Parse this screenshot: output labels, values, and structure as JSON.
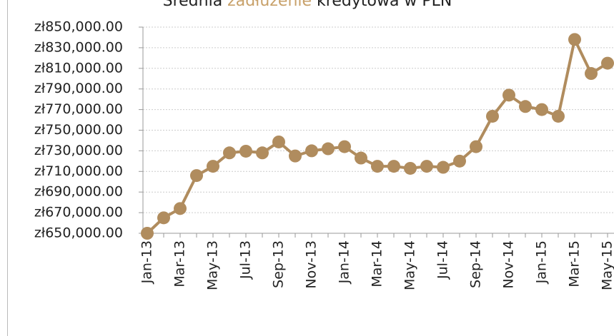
{
  "chart_data": {
    "type": "line",
    "title_parts": [
      "Średnia ",
      "zadłużenie",
      " kredytowa w PLN"
    ],
    "title_colors": [
      "#222222",
      "#c8a16a",
      "#222222"
    ],
    "categories": [
      "Jan-13",
      null,
      "Mar-13",
      null,
      "May-13",
      null,
      "Jul-13",
      null,
      "Sep-13",
      null,
      "Nov-13",
      null,
      "Jan-14",
      null,
      "Mar-14",
      null,
      "May-14",
      null,
      "Jul-14",
      null,
      "Sep-14",
      null,
      "Nov-14",
      null,
      "Jan-15",
      null,
      "Mar-15",
      null,
      "May-15"
    ],
    "values": [
      650000,
      665000,
      674000,
      706000,
      715000,
      728000,
      729600,
      728000,
      738600,
      725000,
      730000,
      732000,
      734000,
      723000,
      715000,
      715000,
      713000,
      715000,
      714000,
      720000,
      734000,
      763500,
      784000,
      773000,
      770000,
      763500,
      838000,
      805000,
      815000
    ],
    "color": "#b08c5e",
    "ylim": [
      650000,
      850000
    ],
    "yticks": [
      {
        "value": 650000,
        "label": "zł650,000.00"
      },
      {
        "value": 670000,
        "label": "zł670,000.00"
      },
      {
        "value": 690000,
        "label": "zł690,000.00"
      },
      {
        "value": 710000,
        "label": "zł710,000.00"
      },
      {
        "value": 730000,
        "label": "zł730,000.00"
      },
      {
        "value": 750000,
        "label": "zł750,000.00"
      },
      {
        "value": 770000,
        "label": "zł770,000.00"
      },
      {
        "value": 790000,
        "label": "zł790,000.00"
      },
      {
        "value": 810000,
        "label": "zł810,000.00"
      },
      {
        "value": 830000,
        "label": "zł830,000.00"
      },
      {
        "value": 850000,
        "label": "zł850,000.00"
      }
    ],
    "grid": true
  }
}
